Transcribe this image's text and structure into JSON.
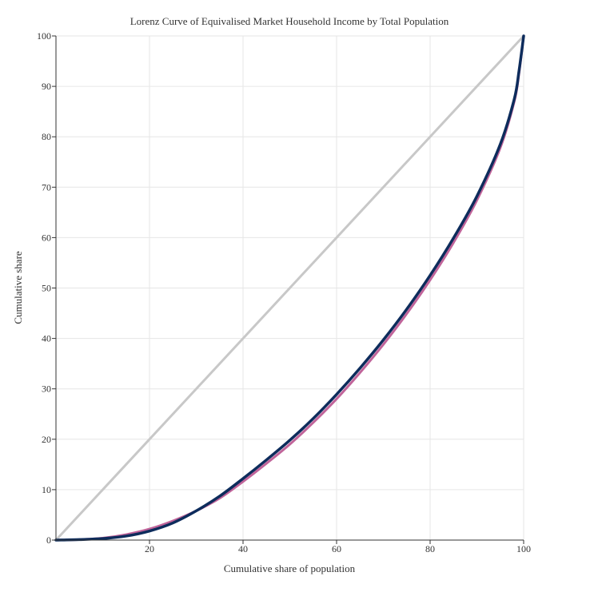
{
  "chart_data": {
    "type": "line",
    "title": "Lorenz Curve of Equivalised Market Household Income by Total Population",
    "xlabel": "Cumulative share of population",
    "ylabel": "Cumulative share",
    "xlim": [
      0,
      100
    ],
    "ylim": [
      0,
      100
    ],
    "x_ticks": [
      20,
      40,
      60,
      80,
      100
    ],
    "y_ticks": [
      0,
      10,
      20,
      30,
      40,
      50,
      60,
      70,
      80,
      90,
      100
    ],
    "grid": true,
    "legend": "none",
    "series": [
      {
        "color": "#c8c8c8",
        "points": [
          [
            0,
            0
          ],
          [
            100,
            100
          ]
        ]
      },
      {
        "color": "#c0649a",
        "points": [
          [
            0,
            0
          ],
          [
            5,
            0.1
          ],
          [
            10,
            0.4
          ],
          [
            15,
            1.1
          ],
          [
            20,
            2.2
          ],
          [
            25,
            3.8
          ],
          [
            30,
            5.8
          ],
          [
            35,
            8.3
          ],
          [
            40,
            11.6
          ],
          [
            45,
            15.2
          ],
          [
            50,
            19.0
          ],
          [
            55,
            23.3
          ],
          [
            60,
            28.0
          ],
          [
            65,
            33.2
          ],
          [
            70,
            38.8
          ],
          [
            75,
            44.9
          ],
          [
            80,
            51.6
          ],
          [
            85,
            59.0
          ],
          [
            90,
            67.4
          ],
          [
            95,
            77.8
          ],
          [
            98,
            87.0
          ],
          [
            99,
            92.5
          ],
          [
            100,
            100
          ]
        ]
      },
      {
        "color": "#0d2c5c",
        "points": [
          [
            0,
            0
          ],
          [
            5,
            0.1
          ],
          [
            10,
            0.3
          ],
          [
            15,
            0.8
          ],
          [
            20,
            1.8
          ],
          [
            25,
            3.4
          ],
          [
            30,
            5.8
          ],
          [
            35,
            8.7
          ],
          [
            40,
            12.2
          ],
          [
            45,
            15.9
          ],
          [
            50,
            19.8
          ],
          [
            55,
            24.1
          ],
          [
            60,
            28.9
          ],
          [
            65,
            34.1
          ],
          [
            70,
            39.7
          ],
          [
            75,
            45.8
          ],
          [
            80,
            52.5
          ],
          [
            85,
            59.9
          ],
          [
            90,
            68.2
          ],
          [
            95,
            78.5
          ],
          [
            98,
            87.5
          ],
          [
            99,
            93.0
          ],
          [
            100,
            100
          ]
        ]
      }
    ]
  }
}
